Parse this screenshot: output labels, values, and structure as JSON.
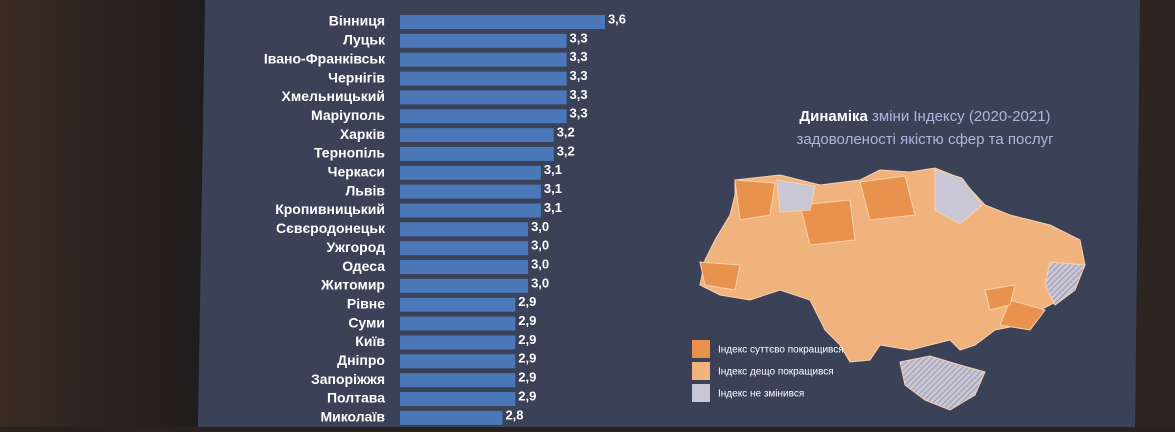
{
  "chart_data": {
    "type": "bar",
    "orientation": "horizontal",
    "color": "#4a78b8",
    "categories": [
      "Вінниця",
      "Луцьк",
      "Івано-Франківськ",
      "Чернігів",
      "Хмельницький",
      "Маріуполь",
      "Харків",
      "Тернопіль",
      "Черкаси",
      "Львів",
      "Кропивницький",
      "Сєвєродонецьк",
      "Ужгород",
      "Одеса",
      "Житомир",
      "Рівне",
      "Суми",
      "Київ",
      "Дніпро",
      "Запоріжжя",
      "Полтава",
      "Миколаїв"
    ],
    "values": [
      3.6,
      3.3,
      3.3,
      3.3,
      3.3,
      3.3,
      3.2,
      3.2,
      3.1,
      3.1,
      3.1,
      3.0,
      3.0,
      3.0,
      3.0,
      2.9,
      2.9,
      2.9,
      2.9,
      2.9,
      2.9,
      2.8
    ],
    "value_labels": [
      "3,6",
      "3,3",
      "3,3",
      "3,3",
      "3,3",
      "3,3",
      "3,2",
      "3,2",
      "3,1",
      "3,1",
      "3,1",
      "3,0",
      "3,0",
      "3,0",
      "3,0",
      "2,9",
      "2,9",
      "2,9",
      "2,9",
      "2,9",
      "2,9",
      "2,8"
    ],
    "xlim": [
      2,
      3.6
    ]
  },
  "map": {
    "title_bold": "Динаміка",
    "title_rest": "зміни Індексу (2020-2021)",
    "title_line2": "задоволеності якістю сфер та послуг",
    "legend": [
      "Індекс суттєво покращився",
      "Індекс дещо покращився",
      "Індекс не змінився"
    ]
  }
}
